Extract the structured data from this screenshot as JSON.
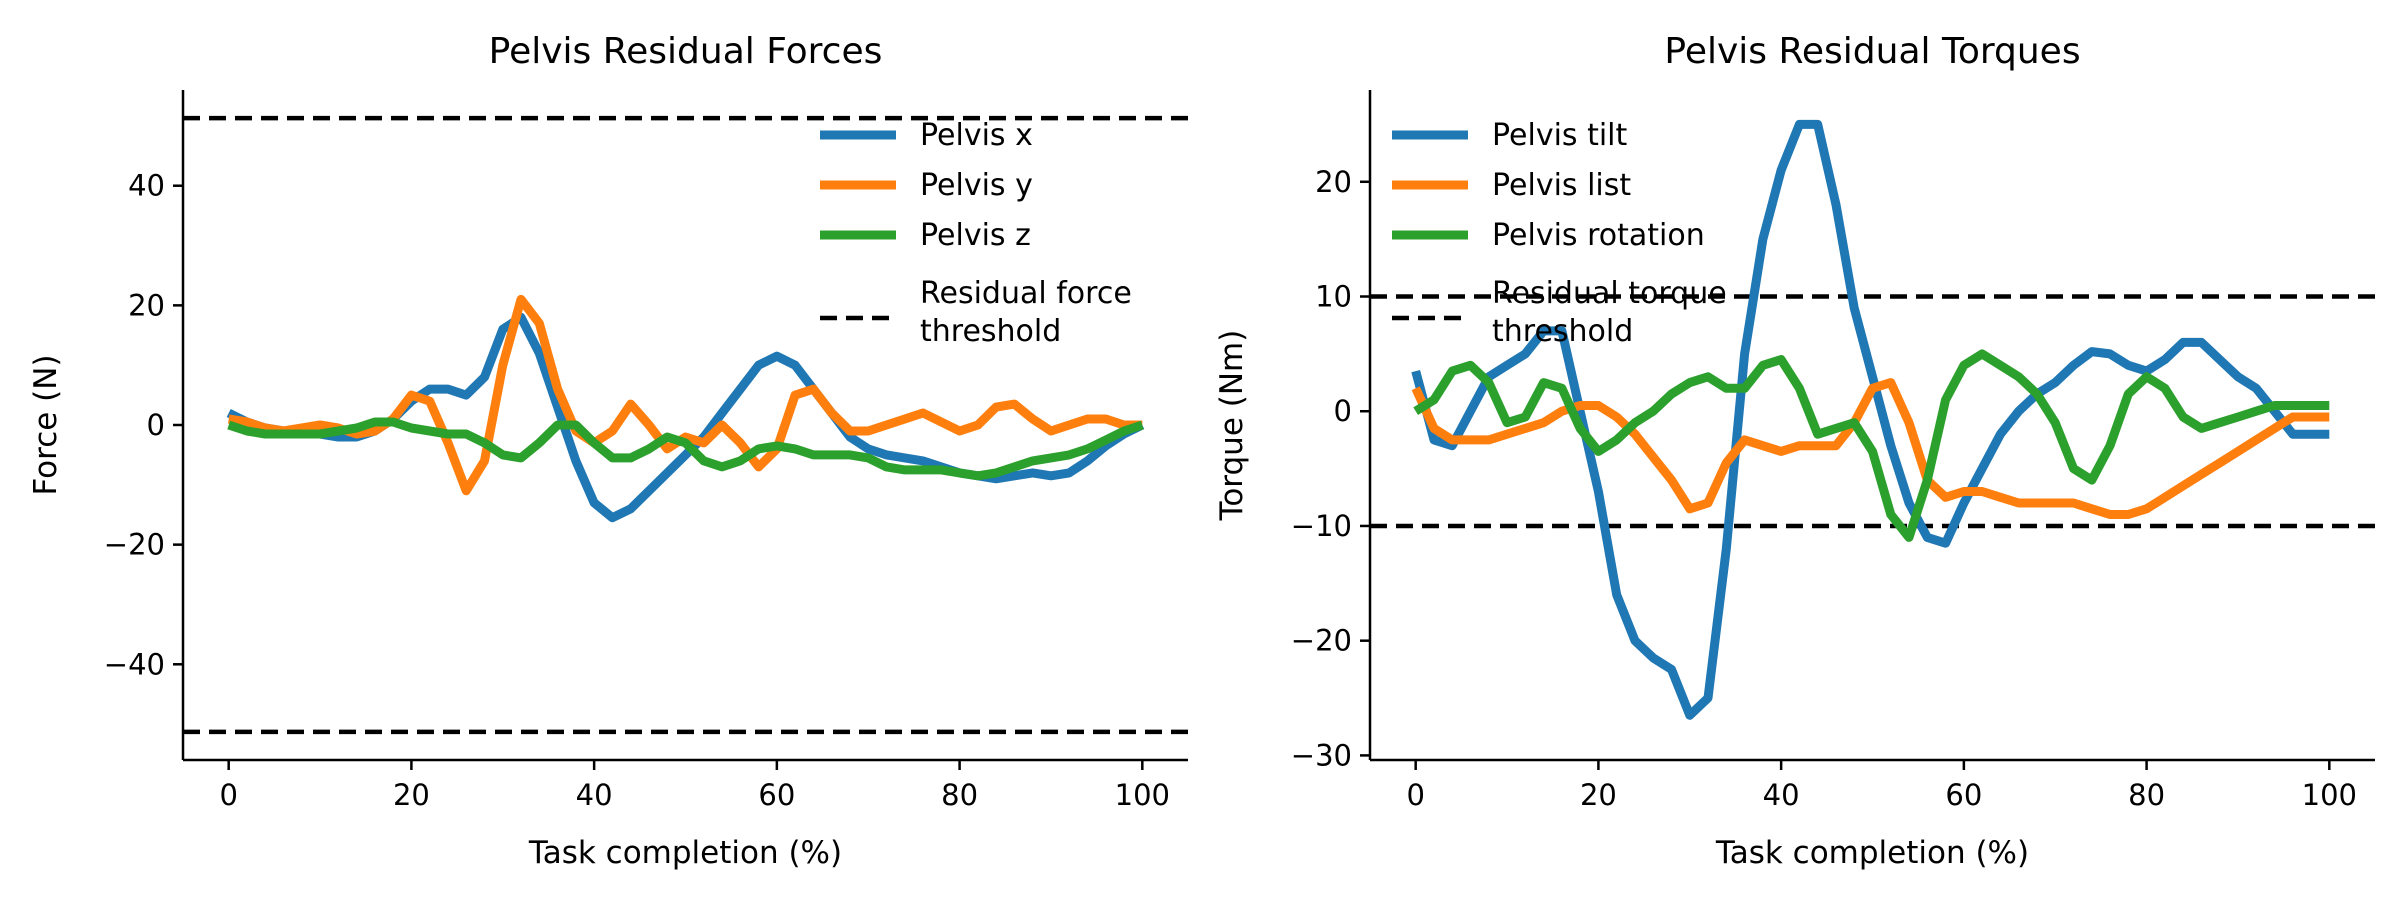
{
  "chart_data": [
    {
      "type": "line",
      "title": "Pelvis Residual Forces",
      "xlabel": "Task completion (%)",
      "ylabel": "Force (N)",
      "xlim": [
        -5,
        105
      ],
      "ylim": [
        -56,
        56
      ],
      "xticks": [
        0,
        20,
        40,
        60,
        80,
        100
      ],
      "yticks": [
        -40,
        -20,
        0,
        20,
        40
      ],
      "xtick_labels": [
        "0",
        "20",
        "40",
        "60",
        "80",
        "100"
      ],
      "ytick_labels": [
        "−40",
        "−20",
        "0",
        "20",
        "40"
      ],
      "grid": false,
      "legend_position": "top-right",
      "x": [
        0,
        2,
        4,
        6,
        8,
        10,
        12,
        14,
        16,
        18,
        20,
        22,
        24,
        26,
        28,
        30,
        32,
        34,
        36,
        38,
        40,
        42,
        44,
        46,
        48,
        50,
        52,
        54,
        56,
        58,
        60,
        62,
        64,
        66,
        68,
        70,
        72,
        74,
        76,
        78,
        80,
        82,
        84,
        86,
        88,
        90,
        92,
        94,
        96,
        98,
        100
      ],
      "series": [
        {
          "name": "Pelvis x",
          "color": "#1f77b4",
          "style": "solid",
          "values": [
            2,
            0.5,
            -0.5,
            -1,
            -1.5,
            -1.5,
            -2,
            -2,
            -1,
            1,
            4,
            6,
            6,
            5,
            8,
            16,
            18,
            12,
            3,
            -6,
            -13,
            -15.5,
            -14,
            -11,
            -8,
            -5,
            -2,
            2,
            6,
            10,
            11.5,
            10,
            6,
            2,
            -2,
            -4,
            -5,
            -5.5,
            -6,
            -7,
            -8,
            -8.5,
            -9,
            -8.5,
            -8,
            -8.5,
            -8,
            -6,
            -3.5,
            -1.5,
            0
          ]
        },
        {
          "name": "Pelvis y",
          "color": "#ff7f0e",
          "style": "solid",
          "values": [
            1,
            0.5,
            -0.5,
            -1,
            -0.5,
            0,
            -0.5,
            -1.5,
            -1,
            1,
            5,
            4,
            -3,
            -11,
            -6,
            10,
            21,
            17,
            6,
            -1,
            -3,
            -1,
            3.5,
            0,
            -4,
            -2,
            -3,
            0,
            -3,
            -7,
            -4,
            5,
            6,
            2,
            -1,
            -1,
            0,
            1,
            2,
            0.5,
            -1,
            0,
            3,
            3.5,
            1,
            -1,
            0,
            1,
            1,
            0,
            0
          ]
        },
        {
          "name": "Pelvis z",
          "color": "#2ca02c",
          "style": "solid",
          "values": [
            0,
            -1,
            -1.5,
            -1.5,
            -1.5,
            -1.5,
            -1,
            -0.5,
            0.5,
            0.5,
            -0.5,
            -1,
            -1.5,
            -1.5,
            -3,
            -5,
            -5.5,
            -3,
            0,
            0,
            -3,
            -5.5,
            -5.5,
            -4,
            -2,
            -3,
            -6,
            -7,
            -6,
            -4,
            -3.5,
            -4,
            -5,
            -5,
            -5,
            -5.5,
            -7,
            -7.5,
            -7.5,
            -7.5,
            -8,
            -8.5,
            -8,
            -7,
            -6,
            -5.5,
            -5,
            -4,
            -2.5,
            -1,
            0
          ]
        }
      ],
      "threshold": {
        "name": "Residual force\nthreshold",
        "values": [
          51.3,
          -51.3
        ],
        "color": "#000000",
        "style": "dashed"
      }
    },
    {
      "type": "line",
      "title": "Pelvis Residual Torques",
      "xlabel": "Task completion (%)",
      "ylabel": "Torque (Nm)",
      "xlim": [
        -5,
        105
      ],
      "ylim": [
        -30.4,
        28
      ],
      "xticks": [
        0,
        20,
        40,
        60,
        80,
        100
      ],
      "yticks": [
        -30,
        -20,
        -10,
        0,
        10,
        20
      ],
      "xtick_labels": [
        "0",
        "20",
        "40",
        "60",
        "80",
        "100"
      ],
      "ytick_labels": [
        "−30",
        "−20",
        "−10",
        "0",
        "10",
        "20"
      ],
      "grid": false,
      "legend_position": "top-left",
      "x": [
        0,
        2,
        4,
        6,
        8,
        10,
        12,
        14,
        16,
        18,
        20,
        22,
        24,
        26,
        28,
        30,
        32,
        34,
        36,
        38,
        40,
        42,
        44,
        46,
        48,
        50,
        52,
        54,
        56,
        58,
        60,
        62,
        64,
        66,
        68,
        70,
        72,
        74,
        76,
        78,
        80,
        82,
        84,
        86,
        88,
        90,
        92,
        94,
        96,
        98,
        100
      ],
      "series": [
        {
          "name": "Pelvis tilt",
          "color": "#1f77b4",
          "style": "solid",
          "values": [
            3.5,
            -2.5,
            -3,
            0,
            3,
            4,
            5,
            7,
            7,
            0,
            -7,
            -16,
            -20,
            -21.5,
            -22.5,
            -26.5,
            -25,
            -12,
            5,
            15,
            21,
            25,
            25,
            18,
            9,
            3,
            -3,
            -8,
            -11,
            -11.5,
            -8,
            -5,
            -2,
            0,
            1.5,
            2.5,
            4,
            5.2,
            5,
            4,
            3.5,
            4.5,
            6,
            6,
            4.5,
            3,
            2,
            0,
            -2,
            -2,
            -2
          ]
        },
        {
          "name": "Pelvis list",
          "color": "#ff7f0e",
          "style": "solid",
          "values": [
            2,
            -1.5,
            -2.5,
            -2.5,
            -2.5,
            -2,
            -1.5,
            -1,
            0,
            0.5,
            0.5,
            -0.5,
            -2,
            -4,
            -6,
            -8.5,
            -8,
            -4.5,
            -2.5,
            -3,
            -3.5,
            -3,
            -3,
            -3,
            -1,
            2,
            2.5,
            -1,
            -6,
            -7.5,
            -7,
            -7,
            -7.5,
            -8,
            -8,
            -8,
            -8,
            -8.5,
            -9,
            -9,
            -8.5,
            -7.5,
            -6.5,
            -5.5,
            -4.5,
            -3.5,
            -2.5,
            -1.5,
            -0.5,
            -0.5,
            -0.5
          ]
        },
        {
          "name": "Pelvis rotation",
          "color": "#2ca02c",
          "style": "solid",
          "values": [
            0,
            1,
            3.5,
            4,
            2.5,
            -1,
            -0.5,
            2.5,
            2,
            -1.5,
            -3.5,
            -2.5,
            -1,
            0,
            1.5,
            2.5,
            3,
            2,
            2,
            4,
            4.5,
            2,
            -2,
            -1.5,
            -1,
            -3.5,
            -9,
            -11,
            -6,
            1,
            4,
            5,
            4,
            3,
            1.5,
            -1,
            -5,
            -6,
            -3,
            1.5,
            3,
            2,
            -0.5,
            -1.5,
            -1,
            -0.5,
            0,
            0.5,
            0.5,
            0.5,
            0.5
          ]
        }
      ],
      "threshold": {
        "name": "Residual torque\nthreshold",
        "values": [
          10,
          -10
        ],
        "color": "#000000",
        "style": "dashed"
      }
    }
  ]
}
